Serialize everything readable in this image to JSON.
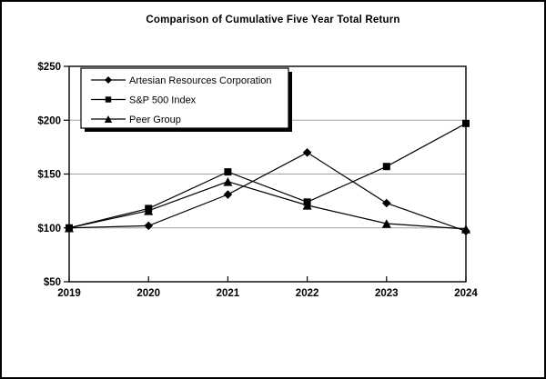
{
  "chart_data": {
    "type": "line",
    "title": "Comparison of Cumulative Five Year Total Return",
    "x": [
      2019,
      2020,
      2021,
      2022,
      2023,
      2024
    ],
    "xtick_labels": [
      "2019",
      "2020",
      "2021",
      "2022",
      "2023",
      "2024"
    ],
    "series": [
      {
        "name": "Artesian Resources Corporation",
        "marker": "diamond",
        "values": [
          100,
          102,
          131,
          170,
          123,
          97
        ]
      },
      {
        "name": "S&P 500 Index",
        "marker": "square",
        "values": [
          100,
          118,
          152,
          124,
          157,
          197
        ]
      },
      {
        "name": "Peer Group",
        "marker": "triangle",
        "values": [
          100,
          116,
          143,
          121,
          104,
          99
        ]
      }
    ],
    "ylim": [
      50,
      250
    ],
    "ytick_values": [
      50,
      100,
      150,
      200,
      250
    ],
    "ytick_labels": [
      "$50",
      "$100",
      "$150",
      "$200",
      "$250"
    ],
    "gridline_values": [
      100,
      150,
      200
    ],
    "grid": "horizontal",
    "legend_position": "top-left-inside",
    "colors": {
      "line": "#000000",
      "marker": "#000000",
      "grid": "#a0a0a0",
      "axis": "#000000",
      "background": "#ffffff",
      "legend_shadow": "#000000"
    }
  }
}
